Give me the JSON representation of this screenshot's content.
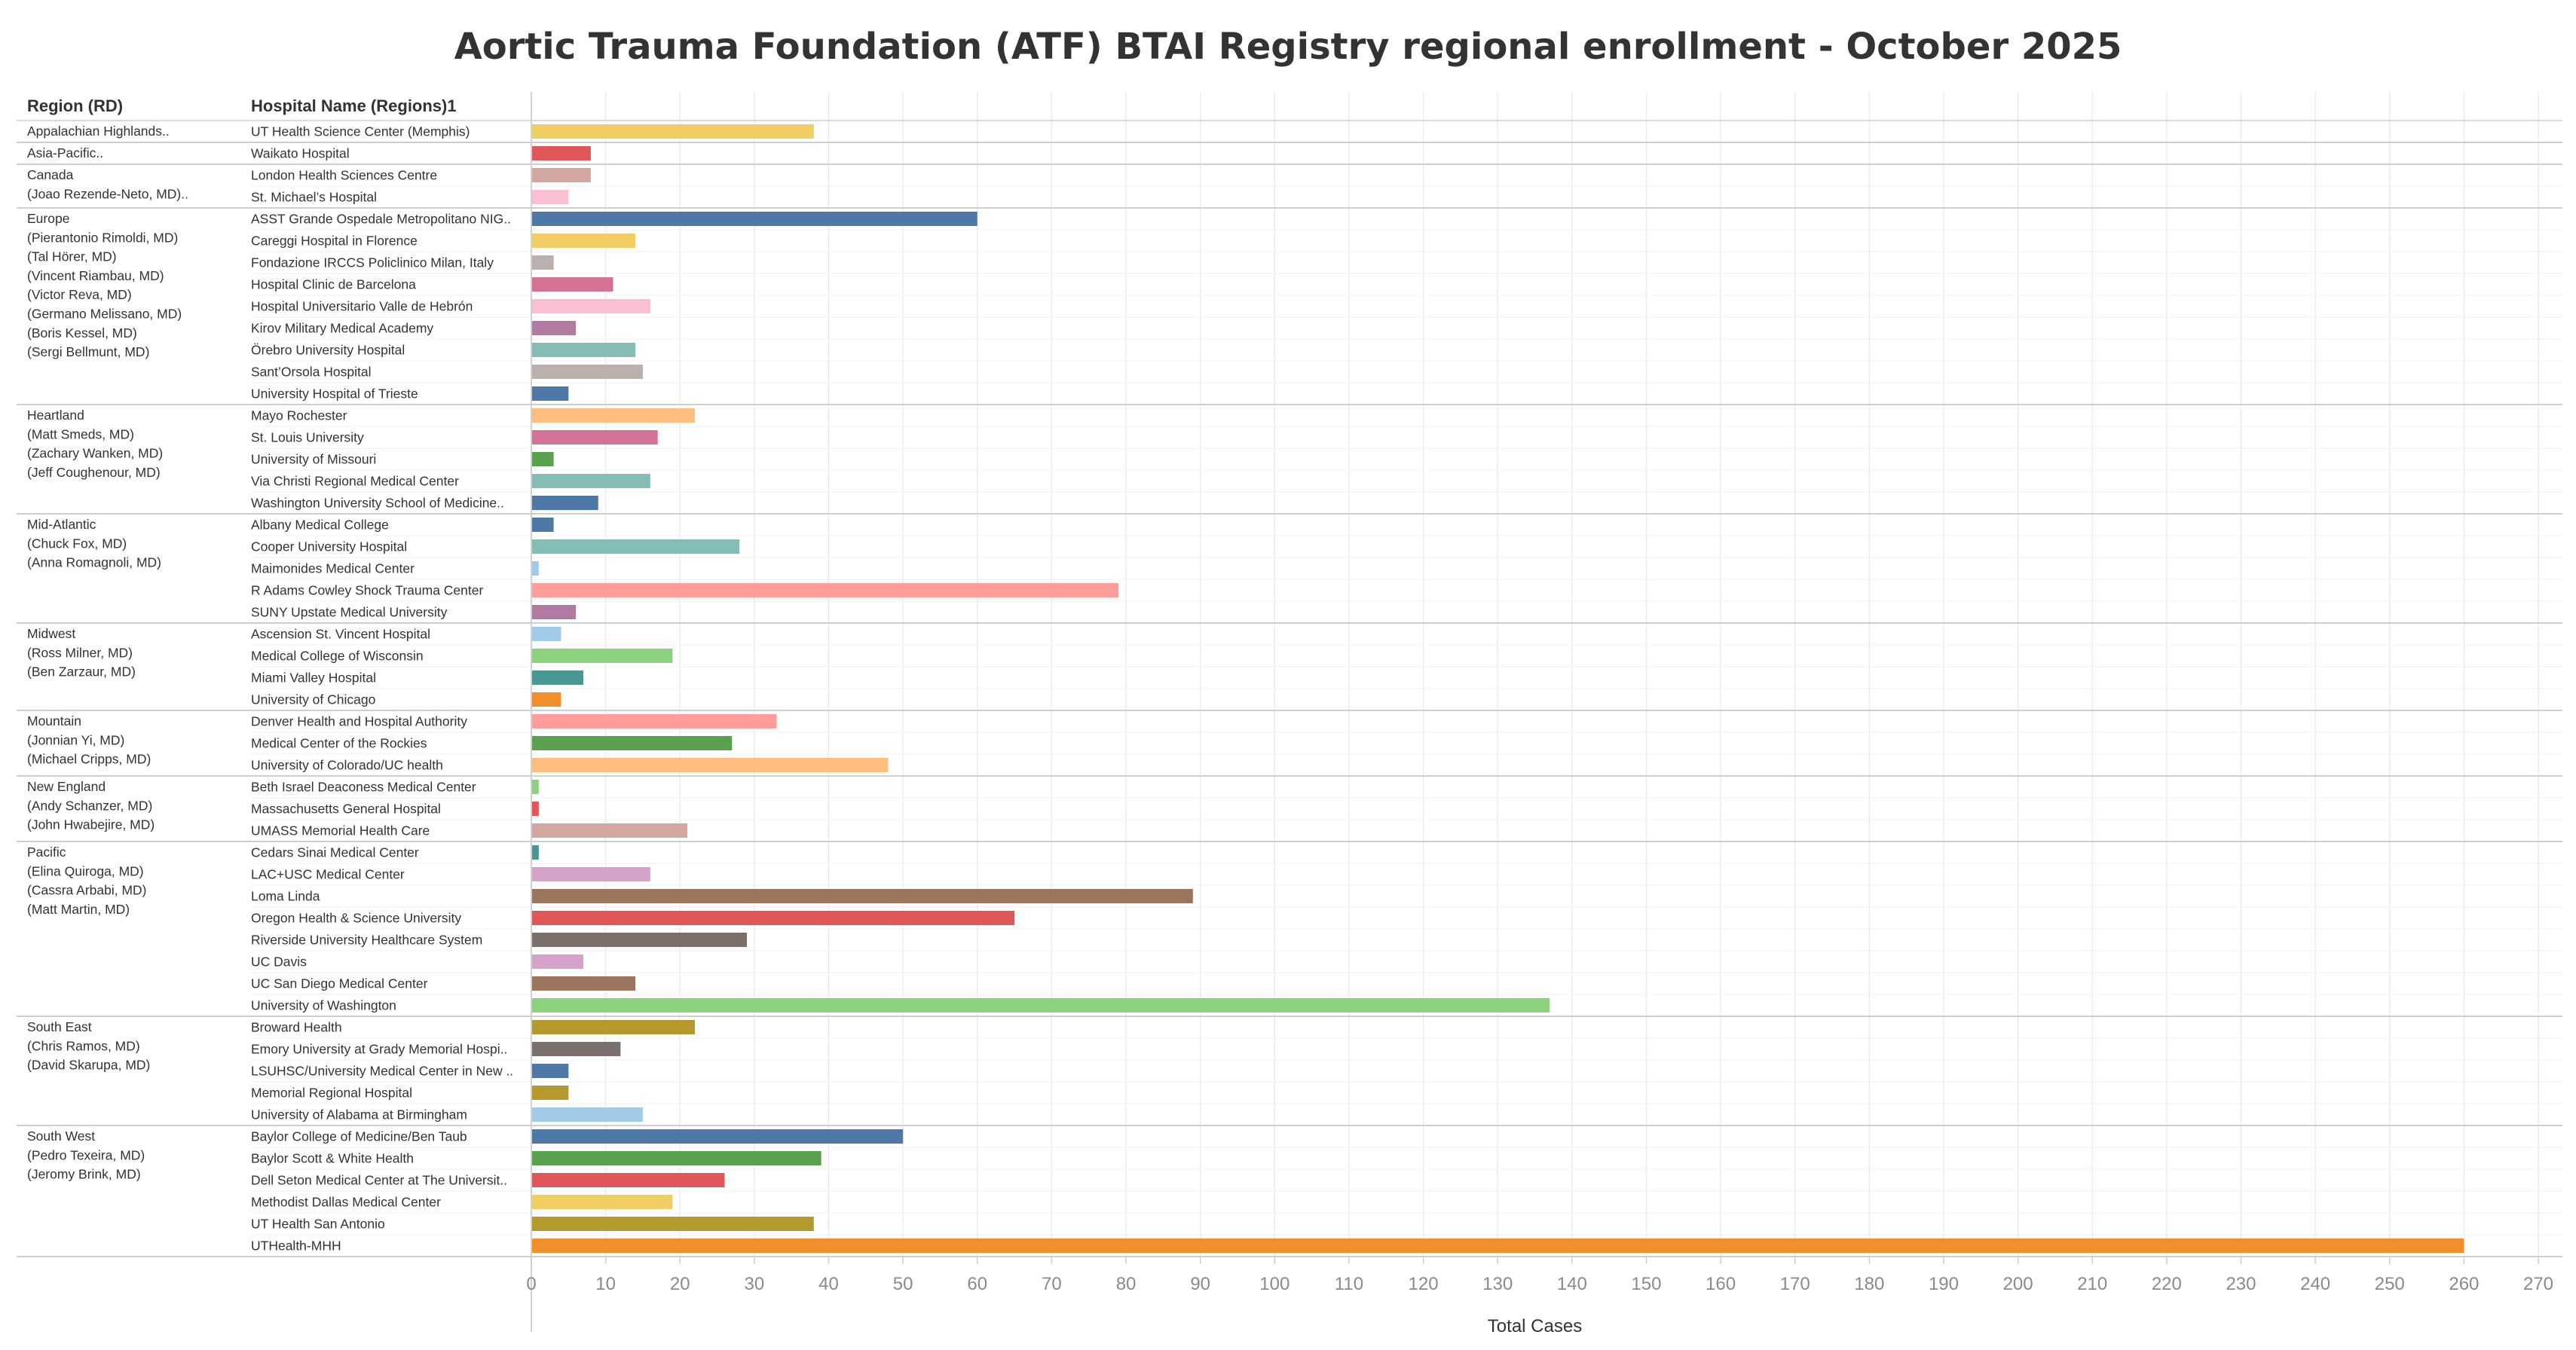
{
  "chart_data": {
    "type": "bar",
    "orientation": "horizontal",
    "title": "Aortic Trauma Foundation (ATF) BTAI Registry regional enrollment - October 2025",
    "region_header": "Region (RD)",
    "hospital_header": "Hospital Name (Regions)1",
    "xlabel": "Total Cases",
    "xlim": [
      0,
      270
    ],
    "xticks": [
      0,
      10,
      20,
      30,
      40,
      50,
      60,
      70,
      80,
      90,
      100,
      110,
      120,
      130,
      140,
      150,
      160,
      170,
      180,
      190,
      200,
      210,
      220,
      230,
      240,
      250,
      260,
      270
    ],
    "grid": true,
    "groups": [
      {
        "region": [
          "Appalachian Highlands.."
        ],
        "bars": [
          {
            "label": "UT Health Science Center (Memphis)",
            "value": 38,
            "color": "#f1ce63"
          }
        ]
      },
      {
        "region": [
          "Asia-Pacific.."
        ],
        "bars": [
          {
            "label": "Waikato Hospital",
            "value": 8,
            "color": "#e15759"
          }
        ]
      },
      {
        "region": [
          "Canada",
          "(Joao Rezende-Neto, MD).."
        ],
        "bars": [
          {
            "label": "London Health Sciences Centre",
            "value": 8,
            "color": "#d4a6a0"
          },
          {
            "label": "St. Michael’s Hospital",
            "value": 5,
            "color": "#fabfd2"
          }
        ]
      },
      {
        "region": [
          "Europe",
          "(Pierantonio Rimoldi, MD)",
          "(Tal Hörer, MD)",
          "(Vincent Riambau, MD)",
          "(Victor Reva, MD)",
          "(Germano Melissano, MD)",
          "(Boris Kessel, MD)",
          "(Sergi Bellmunt, MD)"
        ],
        "bars": [
          {
            "label": "ASST Grande Ospedale Metropolitano NIG..",
            "value": 60,
            "color": "#4e79a7"
          },
          {
            "label": "Careggi Hospital in Florence",
            "value": 14,
            "color": "#f1ce63"
          },
          {
            "label": "Fondazione IRCCS Policlinico Milan, Italy",
            "value": 3,
            "color": "#bab0ac"
          },
          {
            "label": "Hospital Clinic de Barcelona",
            "value": 11,
            "color": "#d37295"
          },
          {
            "label": "Hospital Universitario Valle de Hebrón",
            "value": 16,
            "color": "#fabfd2"
          },
          {
            "label": "Kirov Military Medical Academy",
            "value": 6,
            "color": "#b07aa1"
          },
          {
            "label": "Örebro University Hospital",
            "value": 14,
            "color": "#86bcb6"
          },
          {
            "label": "Sant’Orsola Hospital",
            "value": 15,
            "color": "#bab0ac"
          },
          {
            "label": "University Hospital of Trieste",
            "value": 5,
            "color": "#4e79a7"
          }
        ]
      },
      {
        "region": [
          "Heartland",
          "(Matt Smeds, MD)",
          "(Zachary Wanken, MD)",
          "(Jeff Coughenour, MD)"
        ],
        "bars": [
          {
            "label": "Mayo Rochester",
            "value": 22,
            "color": "#ffbe7d"
          },
          {
            "label": "St. Louis University",
            "value": 17,
            "color": "#d37295"
          },
          {
            "label": "University of Missouri",
            "value": 3,
            "color": "#59a14f"
          },
          {
            "label": "Via Christi Regional Medical Center",
            "value": 16,
            "color": "#86bcb6"
          },
          {
            "label": "Washington University School of Medicine..",
            "value": 9,
            "color": "#4e79a7"
          }
        ]
      },
      {
        "region": [
          "Mid-Atlantic",
          "(Chuck Fox, MD)",
          "(Anna Romagnoli, MD)"
        ],
        "bars": [
          {
            "label": "Albany Medical College",
            "value": 3,
            "color": "#4e79a7"
          },
          {
            "label": "Cooper University Hospital",
            "value": 28,
            "color": "#86bcb6"
          },
          {
            "label": "Maimonides Medical Center",
            "value": 1,
            "color": "#a0cbe8"
          },
          {
            "label": "R Adams Cowley Shock Trauma Center",
            "value": 79,
            "color": "#ff9d9a"
          },
          {
            "label": "SUNY Upstate Medical University",
            "value": 6,
            "color": "#b07aa1"
          }
        ]
      },
      {
        "region": [
          "Midwest",
          "(Ross Milner, MD)",
          "(Ben Zarzaur, MD)"
        ],
        "bars": [
          {
            "label": "Ascension St. Vincent Hospital",
            "value": 4,
            "color": "#a0cbe8"
          },
          {
            "label": "Medical College of Wisconsin",
            "value": 19,
            "color": "#8cd17d"
          },
          {
            "label": "Miami Valley Hospital",
            "value": 7,
            "color": "#499894"
          },
          {
            "label": "University of Chicago",
            "value": 4,
            "color": "#f28e2b"
          }
        ]
      },
      {
        "region": [
          "Mountain",
          "(Jonnian Yi, MD)",
          "(Michael Cripps, MD)"
        ],
        "bars": [
          {
            "label": "Denver Health and Hospital Authority",
            "value": 33,
            "color": "#ff9d9a"
          },
          {
            "label": "Medical Center of the Rockies",
            "value": 27,
            "color": "#59a14f"
          },
          {
            "label": "University of Colorado/UC health",
            "value": 48,
            "color": "#ffbe7d"
          }
        ]
      },
      {
        "region": [
          "New England",
          "(Andy Schanzer, MD)",
          "(John Hwabejire, MD)"
        ],
        "bars": [
          {
            "label": "Beth Israel Deaconess Medical Center",
            "value": 1,
            "color": "#8cd17d"
          },
          {
            "label": "Massachusetts General Hospital",
            "value": 1,
            "color": "#e15759"
          },
          {
            "label": "UMASS Memorial Health Care",
            "value": 21,
            "color": "#d4a6a0"
          }
        ]
      },
      {
        "region": [
          "Pacific",
          "(Elina Quiroga, MD)",
          "(Cassra Arbabi, MD)",
          "(Matt Martin, MD)"
        ],
        "bars": [
          {
            "label": "Cedars Sinai Medical Center",
            "value": 1,
            "color": "#499894"
          },
          {
            "label": "LAC+USC Medical Center",
            "value": 16,
            "color": "#d7a2c9"
          },
          {
            "label": "Loma Linda",
            "value": 89,
            "color": "#9c755f"
          },
          {
            "label": "Oregon Health & Science University",
            "value": 65,
            "color": "#e15759"
          },
          {
            "label": "Riverside University Healthcare System",
            "value": 29,
            "color": "#79706e"
          },
          {
            "label": "UC Davis",
            "value": 7,
            "color": "#d7a2c9"
          },
          {
            "label": "UC San Diego Medical Center",
            "value": 14,
            "color": "#9c755f"
          },
          {
            "label": "University of Washington",
            "value": 137,
            "color": "#8cd17d"
          }
        ]
      },
      {
        "region": [
          "South East",
          "(Chris Ramos, MD)",
          "(David Skarupa, MD)"
        ],
        "bars": [
          {
            "label": "Broward Health",
            "value": 22,
            "color": "#b6992d"
          },
          {
            "label": "Emory University at Grady Memorial Hospi..",
            "value": 12,
            "color": "#79706e"
          },
          {
            "label": "LSUHSC/University Medical Center in New ..",
            "value": 5,
            "color": "#4e79a7"
          },
          {
            "label": "Memorial Regional Hospital",
            "value": 5,
            "color": "#b6992d"
          },
          {
            "label": "University of Alabama at Birmingham",
            "value": 15,
            "color": "#a0cbe8"
          }
        ]
      },
      {
        "region": [
          "South West",
          "(Pedro Texeira, MD)",
          "(Jeromy Brink, MD)"
        ],
        "bars": [
          {
            "label": "Baylor College of Medicine/Ben Taub",
            "value": 50,
            "color": "#4e79a7"
          },
          {
            "label": "Baylor Scott & White Health",
            "value": 39,
            "color": "#59a14f"
          },
          {
            "label": "Dell Seton Medical Center at The Universit..",
            "value": 26,
            "color": "#e15759"
          },
          {
            "label": "Methodist Dallas Medical Center",
            "value": 19,
            "color": "#f1ce63"
          },
          {
            "label": "UT Health San Antonio",
            "value": 38,
            "color": "#b6992d"
          },
          {
            "label": "UTHealth-MHH",
            "value": 260,
            "color": "#f28e2b"
          }
        ]
      }
    ]
  }
}
